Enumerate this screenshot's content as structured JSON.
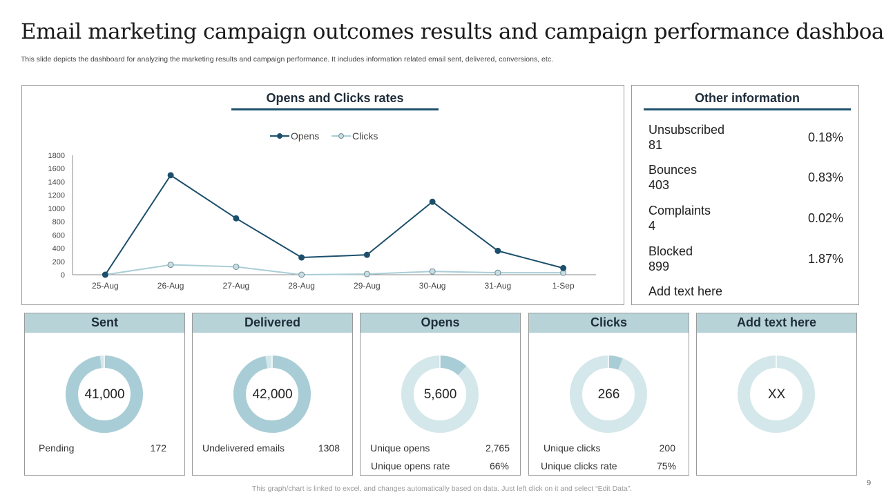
{
  "title": "Email marketing campaign outcomes results and campaign performance dashboard",
  "subtitle": "This slide depicts the dashboard for analyzing the marketing results and campaign performance. It includes information related email sent, delivered, conversions, etc.",
  "chart_panel": {
    "heading": "Opens and Clicks rates"
  },
  "chart_data": {
    "type": "line",
    "title": "Opens and Clicks rates",
    "categories": [
      "25-Aug",
      "26-Aug",
      "27-Aug",
      "28-Aug",
      "29-Aug",
      "30-Aug",
      "31-Aug",
      "1-Sep"
    ],
    "series": [
      {
        "name": "Opens",
        "values": [
          0,
          1500,
          850,
          260,
          300,
          1100,
          360,
          100
        ],
        "color": "#1c4f6b"
      },
      {
        "name": "Clicks",
        "values": [
          0,
          150,
          120,
          0,
          10,
          50,
          30,
          30
        ],
        "color": "#a9cdd6"
      }
    ],
    "yticks": [
      0,
      200,
      400,
      600,
      800,
      1000,
      1200,
      1400,
      1600,
      1800
    ],
    "ylim": [
      0,
      1800
    ],
    "legend": "top-center",
    "grid": false
  },
  "info_panel": {
    "heading": "Other information",
    "rows": [
      {
        "label": "Unsubscribed",
        "count": "81",
        "percent": "0.18%"
      },
      {
        "label": "Bounces",
        "count": "403",
        "percent": "0.83%"
      },
      {
        "label": "Complaints",
        "count": "4",
        "percent": "0.02%"
      },
      {
        "label": "Blocked",
        "count": "899",
        "percent": "1.87%"
      }
    ],
    "extra": "Add text here"
  },
  "cards": [
    {
      "title": "Sent",
      "value": "41,000",
      "fraction": 0.98,
      "stats": [
        {
          "label": "Pending",
          "value": "172"
        }
      ]
    },
    {
      "title": "Delivered",
      "value": "42,000",
      "fraction": 0.97,
      "stats": [
        {
          "label": "Undelivered emails",
          "value": "1308"
        }
      ]
    },
    {
      "title": "Opens",
      "value": "5,600",
      "fraction": 0.12,
      "stats": [
        {
          "label": "Unique opens",
          "value": "2,765"
        },
        {
          "label": "Unique opens rate",
          "value": "66%"
        }
      ]
    },
    {
      "title": "Clicks",
      "value": "266",
      "fraction": 0.06,
      "stats": [
        {
          "label": "Unique clicks",
          "value": "200"
        },
        {
          "label": "Unique clicks rate",
          "value": "75%"
        }
      ]
    },
    {
      "title": "Add text here",
      "value": "XX",
      "fraction": 0.0,
      "stats": []
    }
  ],
  "colors": {
    "ring_filled": "#a9cdd6",
    "ring_remaining": "#d4e7ea",
    "accent": "#1c4f6b",
    "card_header": "#b7d3d8"
  },
  "footer": "This graph/chart is linked to excel,  and changes automatically based on data. Just left click on it and select “Edit Data”.",
  "page_number": "9"
}
